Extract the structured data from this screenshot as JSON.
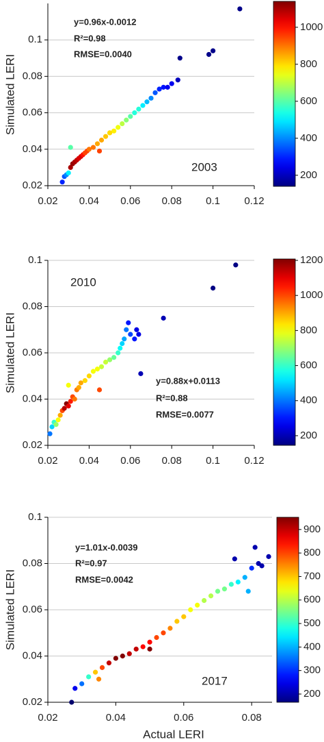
{
  "chart_data": [
    {
      "type": "scatter",
      "ylabel": "Simulated LERI",
      "annotations": [
        "y=0.96x-0.0012",
        "R²=0.98",
        "RMSE=0.0040",
        "2003"
      ],
      "xlim": [
        0.02,
        0.12
      ],
      "xticks": [
        0.02,
        0.04,
        0.06,
        0.08,
        0.1,
        0.12
      ],
      "ylim": [
        0.02,
        0.12
      ],
      "yticks": [
        0.02,
        0.04,
        0.06,
        0.08,
        0.1
      ],
      "grid": true,
      "colormap": "jet",
      "clim": [
        140,
        1140
      ],
      "colorbar_ticks": [
        200,
        400,
        600,
        800,
        1000
      ],
      "x": [
        0.027,
        0.028,
        0.029,
        0.03,
        0.031,
        0.032,
        0.033,
        0.034,
        0.035,
        0.036,
        0.037,
        0.038,
        0.039,
        0.04,
        0.042,
        0.044,
        0.046,
        0.048,
        0.05,
        0.052,
        0.054,
        0.056,
        0.058,
        0.06,
        0.062,
        0.064,
        0.066,
        0.068,
        0.07,
        0.072,
        0.074,
        0.076,
        0.078,
        0.08,
        0.083,
        0.084,
        0.098,
        0.1,
        0.113,
        0.031,
        0.045,
        0.05
      ],
      "values": [
        0.022,
        0.025,
        0.026,
        0.027,
        0.03,
        0.032,
        0.033,
        0.034,
        0.035,
        0.036,
        0.037,
        0.038,
        0.039,
        0.04,
        0.041,
        0.043,
        0.045,
        0.047,
        0.049,
        0.05,
        0.052,
        0.054,
        0.056,
        0.058,
        0.06,
        0.062,
        0.064,
        0.066,
        0.068,
        0.071,
        0.073,
        0.074,
        0.074,
        0.076,
        0.078,
        0.09,
        0.092,
        0.094,
        0.117,
        0.041,
        0.039,
        0.049
      ],
      "color_values": [
        300,
        350,
        400,
        500,
        1100,
        1120,
        1100,
        1080,
        1050,
        1050,
        1000,
        950,
        950,
        900,
        900,
        850,
        850,
        820,
        800,
        780,
        750,
        700,
        650,
        600,
        550,
        550,
        500,
        450,
        400,
        350,
        300,
        280,
        250,
        250,
        200,
        150,
        150,
        150,
        150,
        600,
        950,
        800
      ]
    },
    {
      "type": "scatter",
      "ylabel": "Simulated LERI",
      "annotations": [
        "y=0.88x+0.0113",
        "R²=0.88",
        "RMSE=0.0077",
        "2010"
      ],
      "xlim": [
        0.02,
        0.12
      ],
      "xticks": [
        0.02,
        0.04,
        0.06,
        0.08,
        0.1,
        0.12
      ],
      "ylim": [
        0.02,
        0.1
      ],
      "yticks": [
        0.02,
        0.04,
        0.06,
        0.08,
        0.1
      ],
      "grid": true,
      "colormap": "jet",
      "clim": [
        145,
        1208
      ],
      "colorbar_ticks": [
        200,
        400,
        600,
        800,
        1000,
        1200
      ],
      "x": [
        0.021,
        0.022,
        0.023,
        0.024,
        0.025,
        0.026,
        0.027,
        0.028,
        0.029,
        0.03,
        0.031,
        0.032,
        0.033,
        0.034,
        0.035,
        0.036,
        0.038,
        0.04,
        0.042,
        0.044,
        0.046,
        0.048,
        0.05,
        0.052,
        0.054,
        0.055,
        0.056,
        0.057,
        0.058,
        0.059,
        0.06,
        0.062,
        0.063,
        0.064,
        0.065,
        0.076,
        0.1,
        0.111,
        0.03,
        0.045
      ],
      "values": [
        0.025,
        0.028,
        0.03,
        0.029,
        0.031,
        0.033,
        0.035,
        0.036,
        0.038,
        0.037,
        0.039,
        0.041,
        0.04,
        0.044,
        0.045,
        0.047,
        0.048,
        0.05,
        0.052,
        0.053,
        0.054,
        0.056,
        0.057,
        0.058,
        0.06,
        0.062,
        0.064,
        0.066,
        0.07,
        0.073,
        0.068,
        0.066,
        0.07,
        0.068,
        0.051,
        0.075,
        0.088,
        0.098,
        0.046,
        0.044
      ],
      "color_values": [
        400,
        500,
        600,
        700,
        800,
        900,
        1000,
        1150,
        1200,
        1100,
        1050,
        1000,
        950,
        950,
        900,
        900,
        850,
        850,
        800,
        800,
        750,
        750,
        700,
        650,
        600,
        550,
        500,
        450,
        400,
        300,
        350,
        300,
        250,
        250,
        200,
        200,
        150,
        150,
        800,
        1000
      ]
    },
    {
      "type": "scatter",
      "ylabel": "Simulated LERI",
      "xlabel": "Actual LERI",
      "annotations": [
        "y=1.01x-0.0039",
        "R²=0.97",
        "RMSE=0.0042",
        "2017"
      ],
      "xlim": [
        0.02,
        0.086
      ],
      "xticks": [
        0.02,
        0.04,
        0.06,
        0.08
      ],
      "ylim": [
        0.02,
        0.1
      ],
      "yticks": [
        0.02,
        0.04,
        0.06,
        0.08,
        0.1
      ],
      "grid": true,
      "colormap": "jet",
      "clim": [
        165,
        952
      ],
      "colorbar_ticks": [
        200,
        300,
        400,
        500,
        600,
        700,
        800,
        900
      ],
      "x": [
        0.027,
        0.028,
        0.03,
        0.032,
        0.034,
        0.036,
        0.038,
        0.04,
        0.042,
        0.044,
        0.046,
        0.048,
        0.05,
        0.052,
        0.054,
        0.056,
        0.058,
        0.06,
        0.062,
        0.064,
        0.066,
        0.068,
        0.07,
        0.072,
        0.074,
        0.076,
        0.078,
        0.079,
        0.08,
        0.081,
        0.082,
        0.083,
        0.085,
        0.075,
        0.035,
        0.05
      ],
      "values": [
        0.02,
        0.026,
        0.028,
        0.031,
        0.033,
        0.035,
        0.037,
        0.039,
        0.04,
        0.041,
        0.043,
        0.044,
        0.046,
        0.048,
        0.05,
        0.052,
        0.055,
        0.057,
        0.06,
        0.062,
        0.064,
        0.066,
        0.068,
        0.069,
        0.071,
        0.072,
        0.074,
        0.068,
        0.078,
        0.087,
        0.08,
        0.079,
        0.083,
        0.082,
        0.03,
        0.043
      ],
      "color_values": [
        150,
        250,
        350,
        500,
        700,
        800,
        900,
        950,
        950,
        900,
        900,
        850,
        850,
        800,
        800,
        750,
        700,
        700,
        650,
        650,
        600,
        600,
        550,
        550,
        500,
        450,
        400,
        400,
        300,
        200,
        200,
        200,
        200,
        200,
        750,
        950
      ]
    }
  ]
}
